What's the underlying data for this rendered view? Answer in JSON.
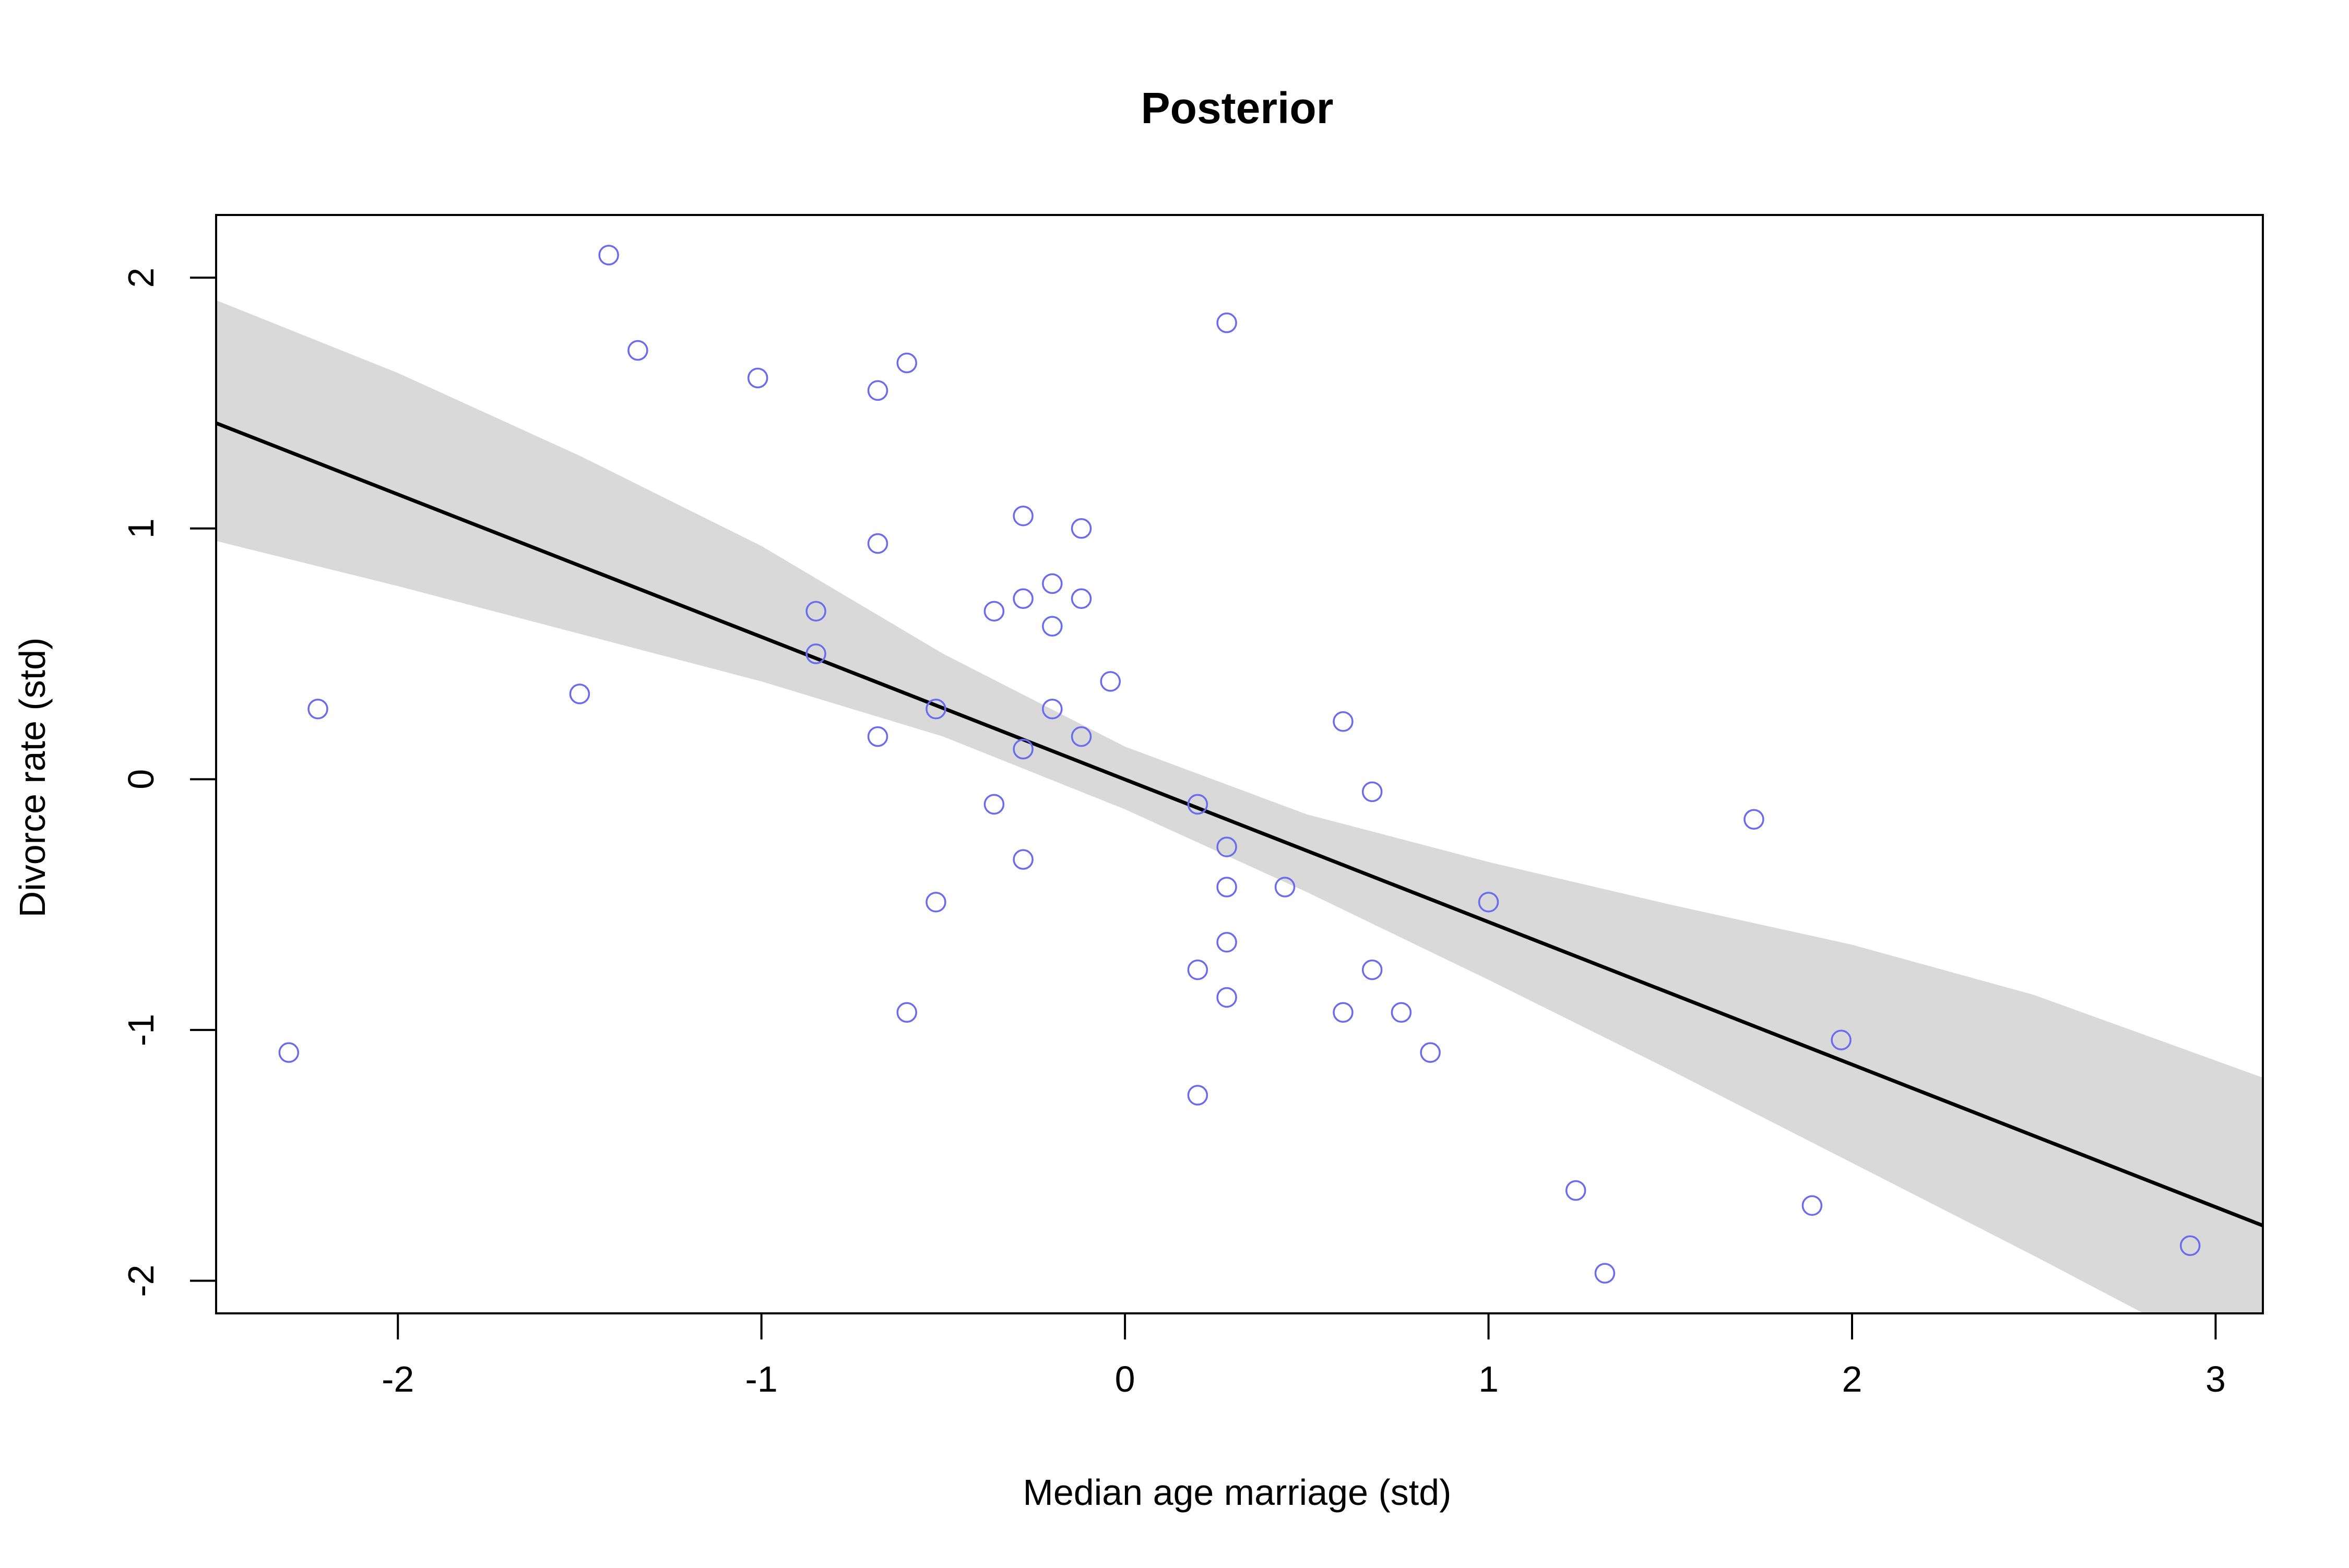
{
  "chart_data": {
    "type": "scatter",
    "title": "Posterior",
    "xlabel": "Median age marriage (std)",
    "ylabel": "Divorce rate (std)",
    "xlim": [
      -2.5,
      3.13
    ],
    "ylim": [
      -2.13,
      2.25
    ],
    "xticks": [
      -2,
      -1,
      0,
      1,
      2,
      3
    ],
    "yticks": [
      -2,
      -1,
      0,
      1,
      2
    ],
    "grid": false,
    "colors": {
      "points": "#6b6bf0",
      "line": "#000000",
      "band": "#d9d9d9",
      "frame": "#000000"
    },
    "points": [
      {
        "x": -1.42,
        "y": 2.09
      },
      {
        "x": 0.28,
        "y": 1.82
      },
      {
        "x": -1.34,
        "y": 1.71
      },
      {
        "x": -0.6,
        "y": 1.66
      },
      {
        "x": -1.01,
        "y": 1.6
      },
      {
        "x": -0.68,
        "y": 1.55
      },
      {
        "x": -0.28,
        "y": 1.05
      },
      {
        "x": -0.12,
        "y": 1.0
      },
      {
        "x": -0.68,
        "y": 0.94
      },
      {
        "x": -0.2,
        "y": 0.78
      },
      {
        "x": -0.28,
        "y": 0.72
      },
      {
        "x": -0.12,
        "y": 0.72
      },
      {
        "x": -0.85,
        "y": 0.67
      },
      {
        "x": -0.36,
        "y": 0.67
      },
      {
        "x": -0.2,
        "y": 0.61
      },
      {
        "x": -0.85,
        "y": 0.5
      },
      {
        "x": -0.04,
        "y": 0.39
      },
      {
        "x": -1.5,
        "y": 0.34
      },
      {
        "x": -2.22,
        "y": 0.28
      },
      {
        "x": -0.52,
        "y": 0.28
      },
      {
        "x": -0.2,
        "y": 0.28
      },
      {
        "x": 0.6,
        "y": 0.23
      },
      {
        "x": -0.68,
        "y": 0.17
      },
      {
        "x": -0.12,
        "y": 0.17
      },
      {
        "x": -0.28,
        "y": 0.12
      },
      {
        "x": 0.68,
        "y": -0.05
      },
      {
        "x": -0.36,
        "y": -0.1
      },
      {
        "x": 0.2,
        "y": -0.1
      },
      {
        "x": 1.73,
        "y": -0.16
      },
      {
        "x": 0.28,
        "y": -0.27
      },
      {
        "x": -0.28,
        "y": -0.32
      },
      {
        "x": 0.28,
        "y": -0.43
      },
      {
        "x": 0.44,
        "y": -0.43
      },
      {
        "x": -0.52,
        "y": -0.49
      },
      {
        "x": 1.0,
        "y": -0.49
      },
      {
        "x": 0.28,
        "y": -0.65
      },
      {
        "x": 0.2,
        "y": -0.76
      },
      {
        "x": 0.68,
        "y": -0.76
      },
      {
        "x": 0.28,
        "y": -0.87
      },
      {
        "x": -0.6,
        "y": -0.93
      },
      {
        "x": 0.6,
        "y": -0.93
      },
      {
        "x": 0.76,
        "y": -0.93
      },
      {
        "x": 1.97,
        "y": -1.04
      },
      {
        "x": -2.3,
        "y": -1.09
      },
      {
        "x": 0.84,
        "y": -1.09
      },
      {
        "x": 0.2,
        "y": -1.26
      },
      {
        "x": 1.24,
        "y": -1.64
      },
      {
        "x": 1.89,
        "y": -1.7
      },
      {
        "x": 2.93,
        "y": -1.86
      },
      {
        "x": 1.32,
        "y": -1.97
      }
    ],
    "mean_line": {
      "x": [
        -2.5,
        3.13
      ],
      "y": [
        1.42,
        -1.78
      ]
    },
    "interval": {
      "x": [
        -2.5,
        -2.0,
        -1.5,
        -1.0,
        -0.5,
        0.0,
        0.5,
        1.0,
        1.5,
        2.0,
        2.5,
        3.13
      ],
      "lower": [
        0.95,
        0.77,
        0.58,
        0.39,
        0.17,
        -0.12,
        -0.45,
        -0.8,
        -1.16,
        -1.53,
        -1.9,
        -2.38
      ],
      "upper": [
        1.91,
        1.62,
        1.29,
        0.93,
        0.5,
        0.13,
        -0.14,
        -0.33,
        -0.5,
        -0.66,
        -0.86,
        -1.19
      ]
    }
  }
}
